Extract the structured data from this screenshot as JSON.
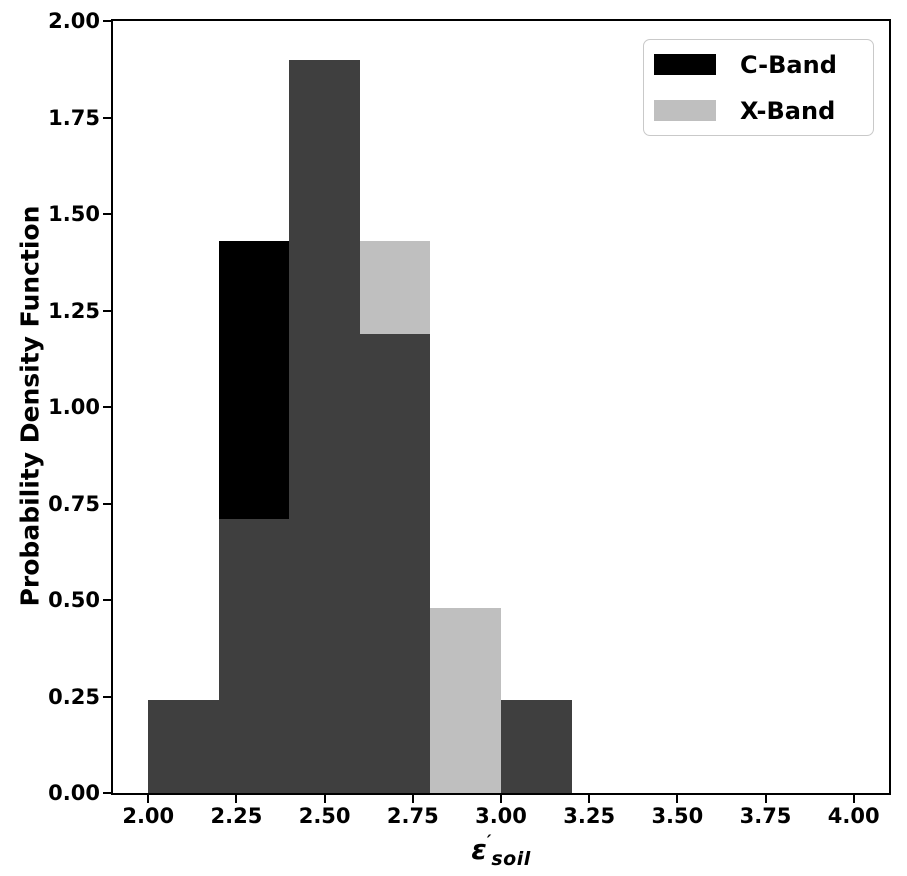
{
  "chart_data": {
    "type": "bar",
    "subtype": "overlapping-histogram",
    "title": "",
    "ylabel": "Probability Density Function",
    "xlabel": {
      "symbol": "ε",
      "prime": "′",
      "subscript": "soil"
    },
    "xlim": [
      1.9,
      4.1
    ],
    "ylim": [
      0.0,
      2.0
    ],
    "grid": false,
    "bin_edges": [
      2.0,
      2.2,
      2.4,
      2.6,
      2.8,
      3.0,
      3.2
    ],
    "series": [
      {
        "name": "C-Band",
        "color": "#000000",
        "values": [
          0.24,
          1.43,
          1.9,
          1.19,
          0.0,
          0.24
        ]
      },
      {
        "name": "X-Band",
        "color": "#bfbfbf",
        "values": [
          0.24,
          0.71,
          1.9,
          1.43,
          0.48,
          0.24
        ]
      }
    ],
    "overlap_color": "#3f3f3f",
    "xticks": [
      {
        "value": 2.0,
        "label": "2.00"
      },
      {
        "value": 2.25,
        "label": "2.25"
      },
      {
        "value": 2.5,
        "label": "2.50"
      },
      {
        "value": 2.75,
        "label": "2.75"
      },
      {
        "value": 3.0,
        "label": "3.00"
      },
      {
        "value": 3.25,
        "label": "3.25"
      },
      {
        "value": 3.5,
        "label": "3.50"
      },
      {
        "value": 3.75,
        "label": "3.75"
      },
      {
        "value": 4.0,
        "label": "4.00"
      }
    ],
    "yticks": [
      {
        "value": 0.0,
        "label": "0.00"
      },
      {
        "value": 0.25,
        "label": "0.25"
      },
      {
        "value": 0.5,
        "label": "0.50"
      },
      {
        "value": 0.75,
        "label": "0.75"
      },
      {
        "value": 1.0,
        "label": "1.00"
      },
      {
        "value": 1.25,
        "label": "1.25"
      },
      {
        "value": 1.5,
        "label": "1.50"
      },
      {
        "value": 1.75,
        "label": "1.75"
      },
      {
        "value": 2.0,
        "label": "2.00"
      }
    ],
    "legend": {
      "position": "upper right"
    }
  }
}
